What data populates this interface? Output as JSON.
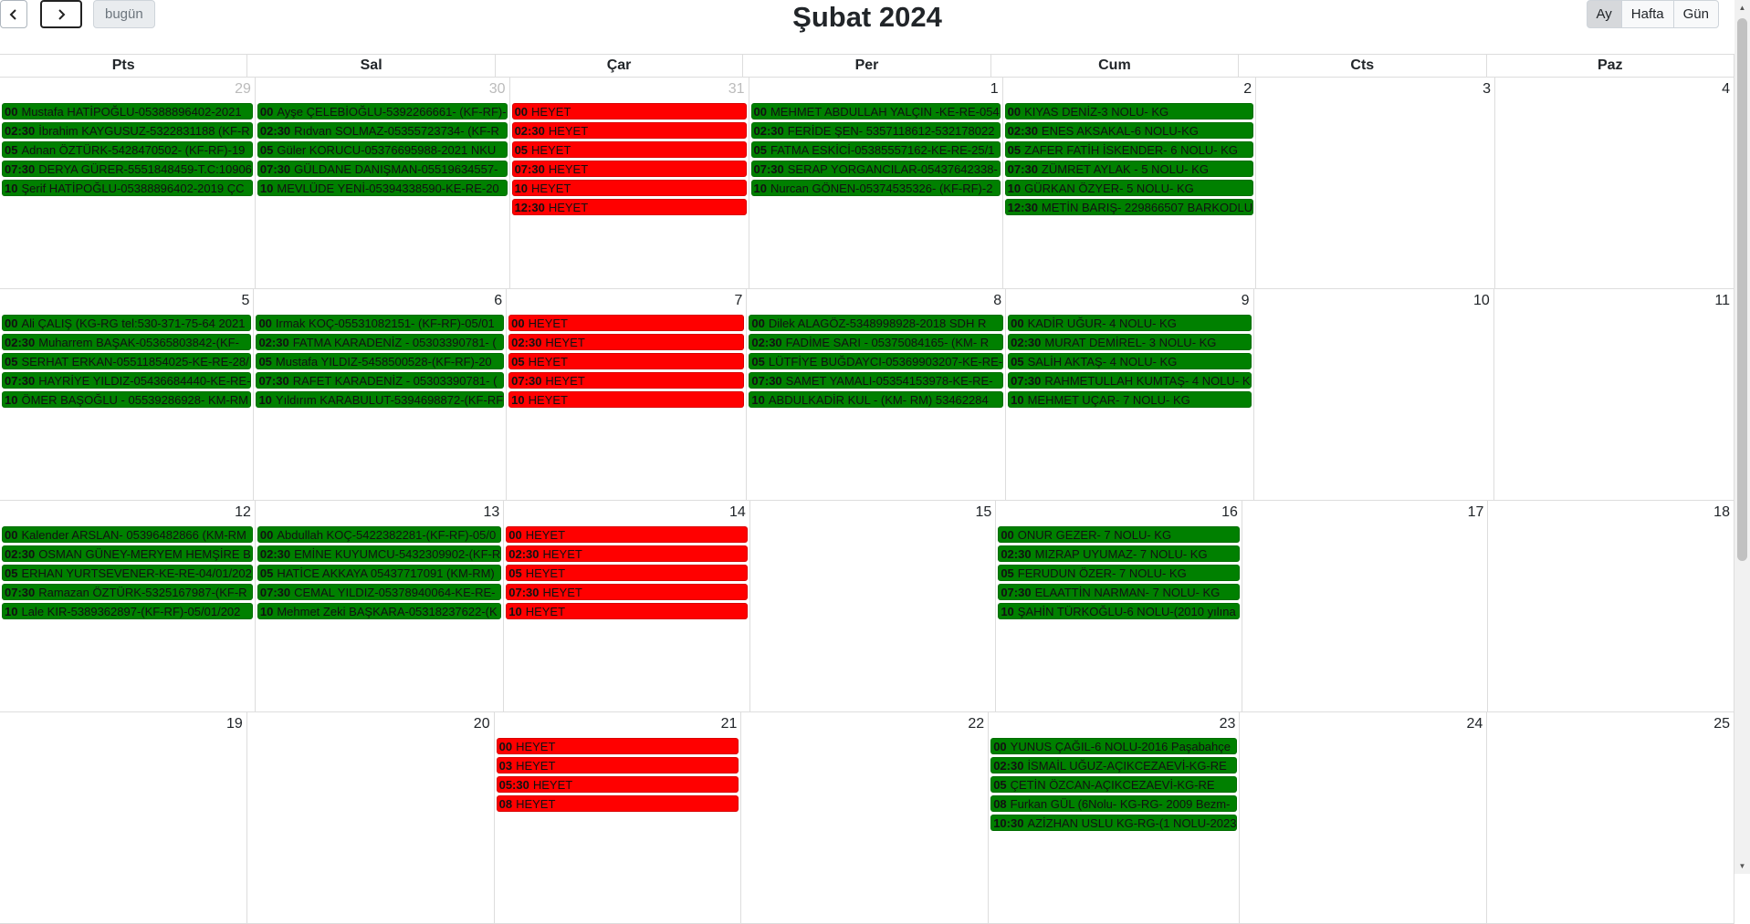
{
  "toolbar": {
    "prev_icon": "chevron-left-icon",
    "next_icon": "chevron-right-icon",
    "today_label": "bugün",
    "title": "Şubat 2024",
    "views": [
      {
        "label": "Ay",
        "active": true
      },
      {
        "label": "Hafta",
        "active": false
      },
      {
        "label": "Gün",
        "active": false
      }
    ]
  },
  "colors": {
    "green": "#008000",
    "red": "#ff0000"
  },
  "weekdays": [
    "Pts",
    "Sal",
    "Çar",
    "Per",
    "Cum",
    "Cts",
    "Paz"
  ],
  "weeks": [
    [
      {
        "day": "29",
        "other": true,
        "events": [
          {
            "time": "00",
            "text": "Mustafa HATİPOĞLU-05388896402-2021",
            "color": "green"
          },
          {
            "time": "02:30",
            "text": "İbrahim KAYGUSUZ-5322831188 (KF-R",
            "color": "green"
          },
          {
            "time": "05",
            "text": "Adnan ÖZTÜRK-5428470502- (KF-RF)-19",
            "color": "green"
          },
          {
            "time": "07:30",
            "text": "DERYA GÜRER-5551848459-T.C:10906",
            "color": "green"
          },
          {
            "time": "10",
            "text": "Şerif HATİPOĞLU-05388896402-2019 ÇC",
            "color": "green"
          }
        ]
      },
      {
        "day": "30",
        "other": true,
        "events": [
          {
            "time": "00",
            "text": "Ayşe ÇELEBİOĞLU-5392266661- (KF-RF)-",
            "color": "green"
          },
          {
            "time": "02:30",
            "text": "Rıdvan SOLMAZ-05355723734- (KF-R",
            "color": "green"
          },
          {
            "time": "05",
            "text": "Güler KORUCU-05376695988-2021 NKU",
            "color": "green"
          },
          {
            "time": "07:30",
            "text": "GÜLDANE DANIŞMAN-05519634557-",
            "color": "green"
          },
          {
            "time": "10",
            "text": "MEVLÜDE YENİ-05394338590-KE-RE-20",
            "color": "green"
          }
        ]
      },
      {
        "day": "31",
        "other": true,
        "events": [
          {
            "time": "00",
            "text": "HEYET",
            "color": "red"
          },
          {
            "time": "02:30",
            "text": "HEYET",
            "color": "red"
          },
          {
            "time": "05",
            "text": "HEYET",
            "color": "red"
          },
          {
            "time": "07:30",
            "text": "HEYET",
            "color": "red"
          },
          {
            "time": "10",
            "text": "HEYET",
            "color": "red"
          },
          {
            "time": "12:30",
            "text": "HEYET",
            "color": "red"
          }
        ]
      },
      {
        "day": "1",
        "other": false,
        "events": [
          {
            "time": "00",
            "text": "MEHMET ABDULLAH YALÇIN -KE-RE-054",
            "color": "green"
          },
          {
            "time": "02:30",
            "text": "FERİDE ŞEN- 5357118612-532178022",
            "color": "green"
          },
          {
            "time": "05",
            "text": "FATMA ESKİCİ-05385557162-KE-RE-25/1",
            "color": "green"
          },
          {
            "time": "07:30",
            "text": "SERAP YORGANCILAR-05437642338-",
            "color": "green"
          },
          {
            "time": "10",
            "text": "Nurcan GÖNEN-05374535326- (KF-RF)-2",
            "color": "green"
          }
        ]
      },
      {
        "day": "2",
        "other": false,
        "events": [
          {
            "time": "00",
            "text": "KIYAS DENİZ-3 NOLU- KG",
            "color": "green"
          },
          {
            "time": "02:30",
            "text": "ENES AKSAKAL-6 NOLU-KG",
            "color": "green"
          },
          {
            "time": "05",
            "text": "ZAFER FATİH İSKENDER- 6 NOLU- KG",
            "color": "green"
          },
          {
            "time": "07:30",
            "text": "ZÜMRET AYLAK - 5 NOLU- KG",
            "color": "green"
          },
          {
            "time": "10",
            "text": "GÜRKAN ÖZYER- 5 NOLU- KG",
            "color": "green"
          },
          {
            "time": "12:30",
            "text": "METİN BARIŞ- 229866507 BARKODLU",
            "color": "green"
          }
        ]
      },
      {
        "day": "3",
        "other": false,
        "events": []
      },
      {
        "day": "4",
        "other": false,
        "events": []
      }
    ],
    [
      {
        "day": "5",
        "other": false,
        "events": [
          {
            "time": "00",
            "text": "Ali ÇALIŞ (KG-RG tel:530-371-75-64 2021",
            "color": "green"
          },
          {
            "time": "02:30",
            "text": "Muharrem BAŞAK-05365803842-(KF-",
            "color": "green"
          },
          {
            "time": "05",
            "text": "SERHAT ERKAN-05511854025-KE-RE-28/",
            "color": "green"
          },
          {
            "time": "07:30",
            "text": "HAYRİYE YILDIZ-05436684440-KE-RE-",
            "color": "green"
          },
          {
            "time": "10",
            "text": "ÖMER BAŞOĞLU - 05539286928- KM-RM",
            "color": "green"
          }
        ]
      },
      {
        "day": "6",
        "other": false,
        "events": [
          {
            "time": "00",
            "text": "Irmak KOÇ-05531082151- (KF-RF)-05/01",
            "color": "green"
          },
          {
            "time": "02:30",
            "text": "FATMA KARADENİZ - 05303390781- (",
            "color": "green"
          },
          {
            "time": "05",
            "text": "Mustafa YILDIZ-5458500528-(KF-RF)-20",
            "color": "green"
          },
          {
            "time": "07:30",
            "text": "RAFET KARADENİZ - 05303390781- (",
            "color": "green"
          },
          {
            "time": "10",
            "text": "Yıldırım KARABULUT-5394698872-(KF-RF",
            "color": "green"
          }
        ]
      },
      {
        "day": "7",
        "other": false,
        "events": [
          {
            "time": "00",
            "text": "HEYET",
            "color": "red"
          },
          {
            "time": "02:30",
            "text": "HEYET",
            "color": "red"
          },
          {
            "time": "05",
            "text": "HEYET",
            "color": "red"
          },
          {
            "time": "07:30",
            "text": "HEYET",
            "color": "red"
          },
          {
            "time": "10",
            "text": "HEYET",
            "color": "red"
          }
        ]
      },
      {
        "day": "8",
        "other": false,
        "events": [
          {
            "time": "00",
            "text": "Dilek ALAGÖZ-5348998928-2018 SDH R",
            "color": "green"
          },
          {
            "time": "02:30",
            "text": "FADİME SARI - 05375084165- (KM- R",
            "color": "green"
          },
          {
            "time": "05",
            "text": "LÜTFİYE BUĞDAYCI-05369903207-KE-RE-",
            "color": "green"
          },
          {
            "time": "07:30",
            "text": "SAMET YAMALI-05354153978-KE-RE-",
            "color": "green"
          },
          {
            "time": "10",
            "text": "ABDULKADİR KUL - (KM- RM) 53462284",
            "color": "green"
          }
        ]
      },
      {
        "day": "9",
        "other": false,
        "events": [
          {
            "time": "00",
            "text": "KADİR UĞUR- 4 NOLU- KG",
            "color": "green"
          },
          {
            "time": "02:30",
            "text": "MURAT DEMİREL- 3 NOLU- KG",
            "color": "green"
          },
          {
            "time": "05",
            "text": "SALİH AKTAŞ- 4 NOLU- KG",
            "color": "green"
          },
          {
            "time": "07:30",
            "text": "RAHMETULLAH KUMTAŞ- 4 NOLU- K",
            "color": "green"
          },
          {
            "time": "10",
            "text": "MEHMET UÇAR- 7 NOLU- KG",
            "color": "green"
          }
        ]
      },
      {
        "day": "10",
        "other": false,
        "events": []
      },
      {
        "day": "11",
        "other": false,
        "events": []
      }
    ],
    [
      {
        "day": "12",
        "other": false,
        "events": [
          {
            "time": "00",
            "text": "Kalender ARSLAN- 05396482866 (KM-RM",
            "color": "green"
          },
          {
            "time": "02:30",
            "text": "OSMAN GÜNEY-MERYEM HEMŞİRE B",
            "color": "green"
          },
          {
            "time": "05",
            "text": "ERHAN YURTSEVENER-KE-RE-04/01/202",
            "color": "green"
          },
          {
            "time": "07:30",
            "text": "Ramazan ÖZTÜRK-5325167987-(KF-R",
            "color": "green"
          },
          {
            "time": "10",
            "text": "Lale KIR-5389362897-(KF-RF)-05/01/202",
            "color": "green"
          }
        ]
      },
      {
        "day": "13",
        "other": false,
        "events": [
          {
            "time": "00",
            "text": "Abdullah KOÇ-5422382281-(KF-RF)-05/0",
            "color": "green"
          },
          {
            "time": "02:30",
            "text": "EMİNE KUYUMCU-5432309902-(KF-R",
            "color": "green"
          },
          {
            "time": "05",
            "text": "HATİCE AKKAYA 05437717091 (KM-RM)",
            "color": "green"
          },
          {
            "time": "07:30",
            "text": "CEMAL YILDIZ-05378940064-KE-RE-",
            "color": "green"
          },
          {
            "time": "10",
            "text": "Mehmet Zeki BAŞKARA-05318237622-(K",
            "color": "green"
          }
        ]
      },
      {
        "day": "14",
        "other": false,
        "events": [
          {
            "time": "00",
            "text": "HEYET",
            "color": "red"
          },
          {
            "time": "02:30",
            "text": "HEYET",
            "color": "red"
          },
          {
            "time": "05",
            "text": "HEYET",
            "color": "red"
          },
          {
            "time": "07:30",
            "text": "HEYET",
            "color": "red"
          },
          {
            "time": "10",
            "text": "HEYET",
            "color": "red"
          }
        ]
      },
      {
        "day": "15",
        "other": false,
        "events": []
      },
      {
        "day": "16",
        "other": false,
        "events": [
          {
            "time": "00",
            "text": "ONUR GEZER- 7 NOLU- KG",
            "color": "green"
          },
          {
            "time": "02:30",
            "text": "MIZRAP UYUMAZ- 7 NOLU- KG",
            "color": "green"
          },
          {
            "time": "05",
            "text": "FERUDUN ÖZER- 7 NOLU- KG",
            "color": "green"
          },
          {
            "time": "07:30",
            "text": "ELAATTİN NARMAN- 7 NOLU- KG",
            "color": "green"
          },
          {
            "time": "10",
            "text": "ŞAHİN TÜRKOĞLU-6 NOLU-(2010 yılına",
            "color": "green"
          }
        ]
      },
      {
        "day": "17",
        "other": false,
        "events": []
      },
      {
        "day": "18",
        "other": false,
        "events": []
      }
    ],
    [
      {
        "day": "19",
        "other": false,
        "events": []
      },
      {
        "day": "20",
        "other": false,
        "events": []
      },
      {
        "day": "21",
        "other": false,
        "events": [
          {
            "time": "00",
            "text": "HEYET",
            "color": "red"
          },
          {
            "time": "03",
            "text": "HEYET",
            "color": "red"
          },
          {
            "time": "05:30",
            "text": "HEYET",
            "color": "red"
          },
          {
            "time": "08",
            "text": "HEYET",
            "color": "red"
          }
        ]
      },
      {
        "day": "22",
        "other": false,
        "events": []
      },
      {
        "day": "23",
        "other": false,
        "events": [
          {
            "time": "00",
            "text": "YUNUS ÇAĞIL-6 NOLU-2016 Paşabahçe",
            "color": "green"
          },
          {
            "time": "02:30",
            "text": "İSMAİL UĞUZ-AÇIKCEZAEVİ-KG-RE",
            "color": "green"
          },
          {
            "time": "05",
            "text": "ÇETİN ÖZCAN-AÇIKCEZAEVİ-KG-RE",
            "color": "green"
          },
          {
            "time": "08",
            "text": "Furkan GÜL (6Nolu- KG-RG- 2009 Bezm-",
            "color": "green"
          },
          {
            "time": "10:30",
            "text": "AZİZHAN USLU KG-RG-(1 NOLU-2023",
            "color": "green"
          }
        ]
      },
      {
        "day": "24",
        "other": false,
        "events": []
      },
      {
        "day": "25",
        "other": false,
        "events": []
      }
    ]
  ]
}
